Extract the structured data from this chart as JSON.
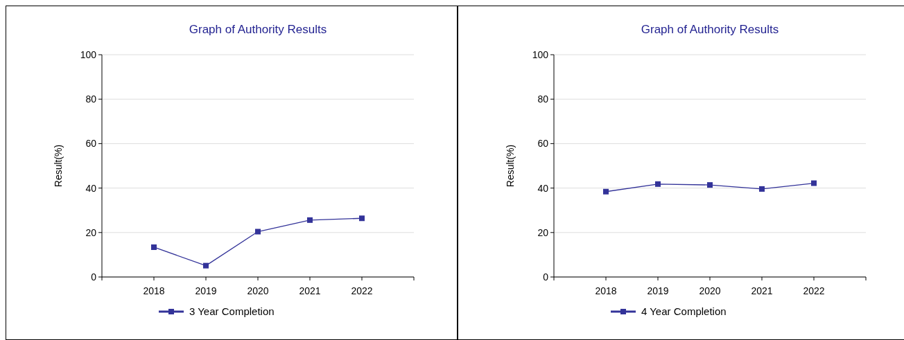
{
  "chart_data": [
    {
      "type": "line",
      "title": "Graph of Authority Results",
      "ylabel": "Result(%)",
      "categories": [
        "2018",
        "2019",
        "2020",
        "2021",
        "2022"
      ],
      "series": [
        {
          "name": "3 Year Completion",
          "color": "#333399",
          "values": [
            13.4,
            5.1,
            20.4,
            25.6,
            26.4
          ]
        }
      ],
      "ylim": [
        0,
        100
      ],
      "yticks": [
        0,
        20,
        40,
        60,
        80,
        100
      ],
      "grid": "y",
      "legend": "bottom",
      "marker": "square",
      "line_style": "solid"
    },
    {
      "type": "line",
      "title": "Graph of Authority Results",
      "ylabel": "Result(%)",
      "categories": [
        "2018",
        "2019",
        "2020",
        "2021",
        "2022"
      ],
      "series": [
        {
          "name": "4 Year Completion",
          "color": "#333399",
          "values": [
            38.4,
            41.8,
            41.4,
            39.6,
            42.2
          ]
        }
      ],
      "ylim": [
        0,
        100
      ],
      "yticks": [
        0,
        20,
        40,
        60,
        80,
        100
      ],
      "grid": "y",
      "legend": "bottom",
      "marker": "square",
      "line_style": "solid"
    }
  ]
}
